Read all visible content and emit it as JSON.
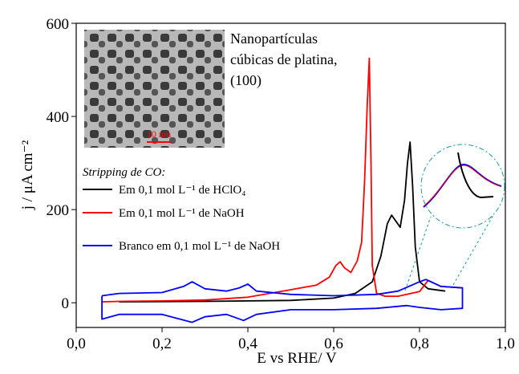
{
  "chart_data": {
    "type": "line",
    "xlabel": "E vs RHE/ V",
    "ylabel": "j / μA cm⁻²",
    "legend_title": "Stripping de CO:",
    "annotation": [
      "Nanopartículas",
      "cúbicas de platina,",
      "(100)"
    ],
    "scale_bar": "10 nm",
    "xlim": [
      0,
      1
    ],
    "ylim": [
      -53,
      600
    ],
    "xticks": [
      {
        "value": 0,
        "label": "0,0"
      },
      {
        "value": 0.2,
        "label": "0,2"
      },
      {
        "value": 0.4,
        "label": "0,4"
      },
      {
        "value": 0.6,
        "label": "0,6"
      },
      {
        "value": 0.8,
        "label": "0,8"
      },
      {
        "value": 1,
        "label": "1,0"
      }
    ],
    "yticks": [
      0,
      200,
      400,
      600
    ],
    "series": [
      {
        "name": "Em 0,1 mol L⁻¹ de HClO₄",
        "color": "#000000",
        "x": [
          0.1,
          0.3,
          0.5,
          0.6,
          0.65,
          0.69,
          0.71,
          0.725,
          0.735,
          0.745,
          0.755,
          0.765,
          0.772,
          0.778,
          0.784,
          0.79,
          0.8,
          0.82,
          0.86
        ],
        "values": [
          2,
          3,
          5,
          10,
          20,
          45,
          100,
          170,
          188,
          175,
          162,
          220,
          300,
          345,
          250,
          120,
          45,
          30,
          25
        ]
      },
      {
        "name": "Em 0,1 mol L⁻¹ de NaOH",
        "color": "#ff0000",
        "x": [
          0.06,
          0.1,
          0.2,
          0.3,
          0.4,
          0.5,
          0.56,
          0.59,
          0.605,
          0.615,
          0.625,
          0.64,
          0.655,
          0.665,
          0.672,
          0.678,
          0.683,
          0.687,
          0.69,
          0.7,
          0.72,
          0.75,
          0.8,
          0.82,
          0.85,
          0.9
        ],
        "values": [
          2,
          3,
          4,
          6,
          12,
          28,
          38,
          55,
          80,
          88,
          75,
          65,
          90,
          130,
          260,
          420,
          525,
          300,
          80,
          20,
          14,
          14,
          24,
          48,
          35,
          32
        ]
      },
      {
        "name": "Branco em 0,1 mol L⁻¹ de NaOH",
        "color": "#0000ff",
        "x": [
          0.06,
          0.1,
          0.2,
          0.25,
          0.27,
          0.3,
          0.35,
          0.38,
          0.4,
          0.42,
          0.5,
          0.6,
          0.7,
          0.75,
          0.8,
          0.815,
          0.85,
          0.9,
          0.9,
          0.85,
          0.8,
          0.77,
          0.7,
          0.6,
          0.5,
          0.42,
          0.39,
          0.35,
          0.3,
          0.27,
          0.2,
          0.1,
          0.06,
          0.06
        ],
        "values": [
          15,
          20,
          22,
          35,
          45,
          30,
          25,
          32,
          40,
          25,
          18,
          15,
          18,
          25,
          45,
          50,
          35,
          32,
          -12,
          -15,
          -10,
          -6,
          -12,
          -15,
          -15,
          -25,
          -38,
          -25,
          -30,
          -42,
          -25,
          -25,
          -35,
          15
        ]
      }
    ]
  }
}
